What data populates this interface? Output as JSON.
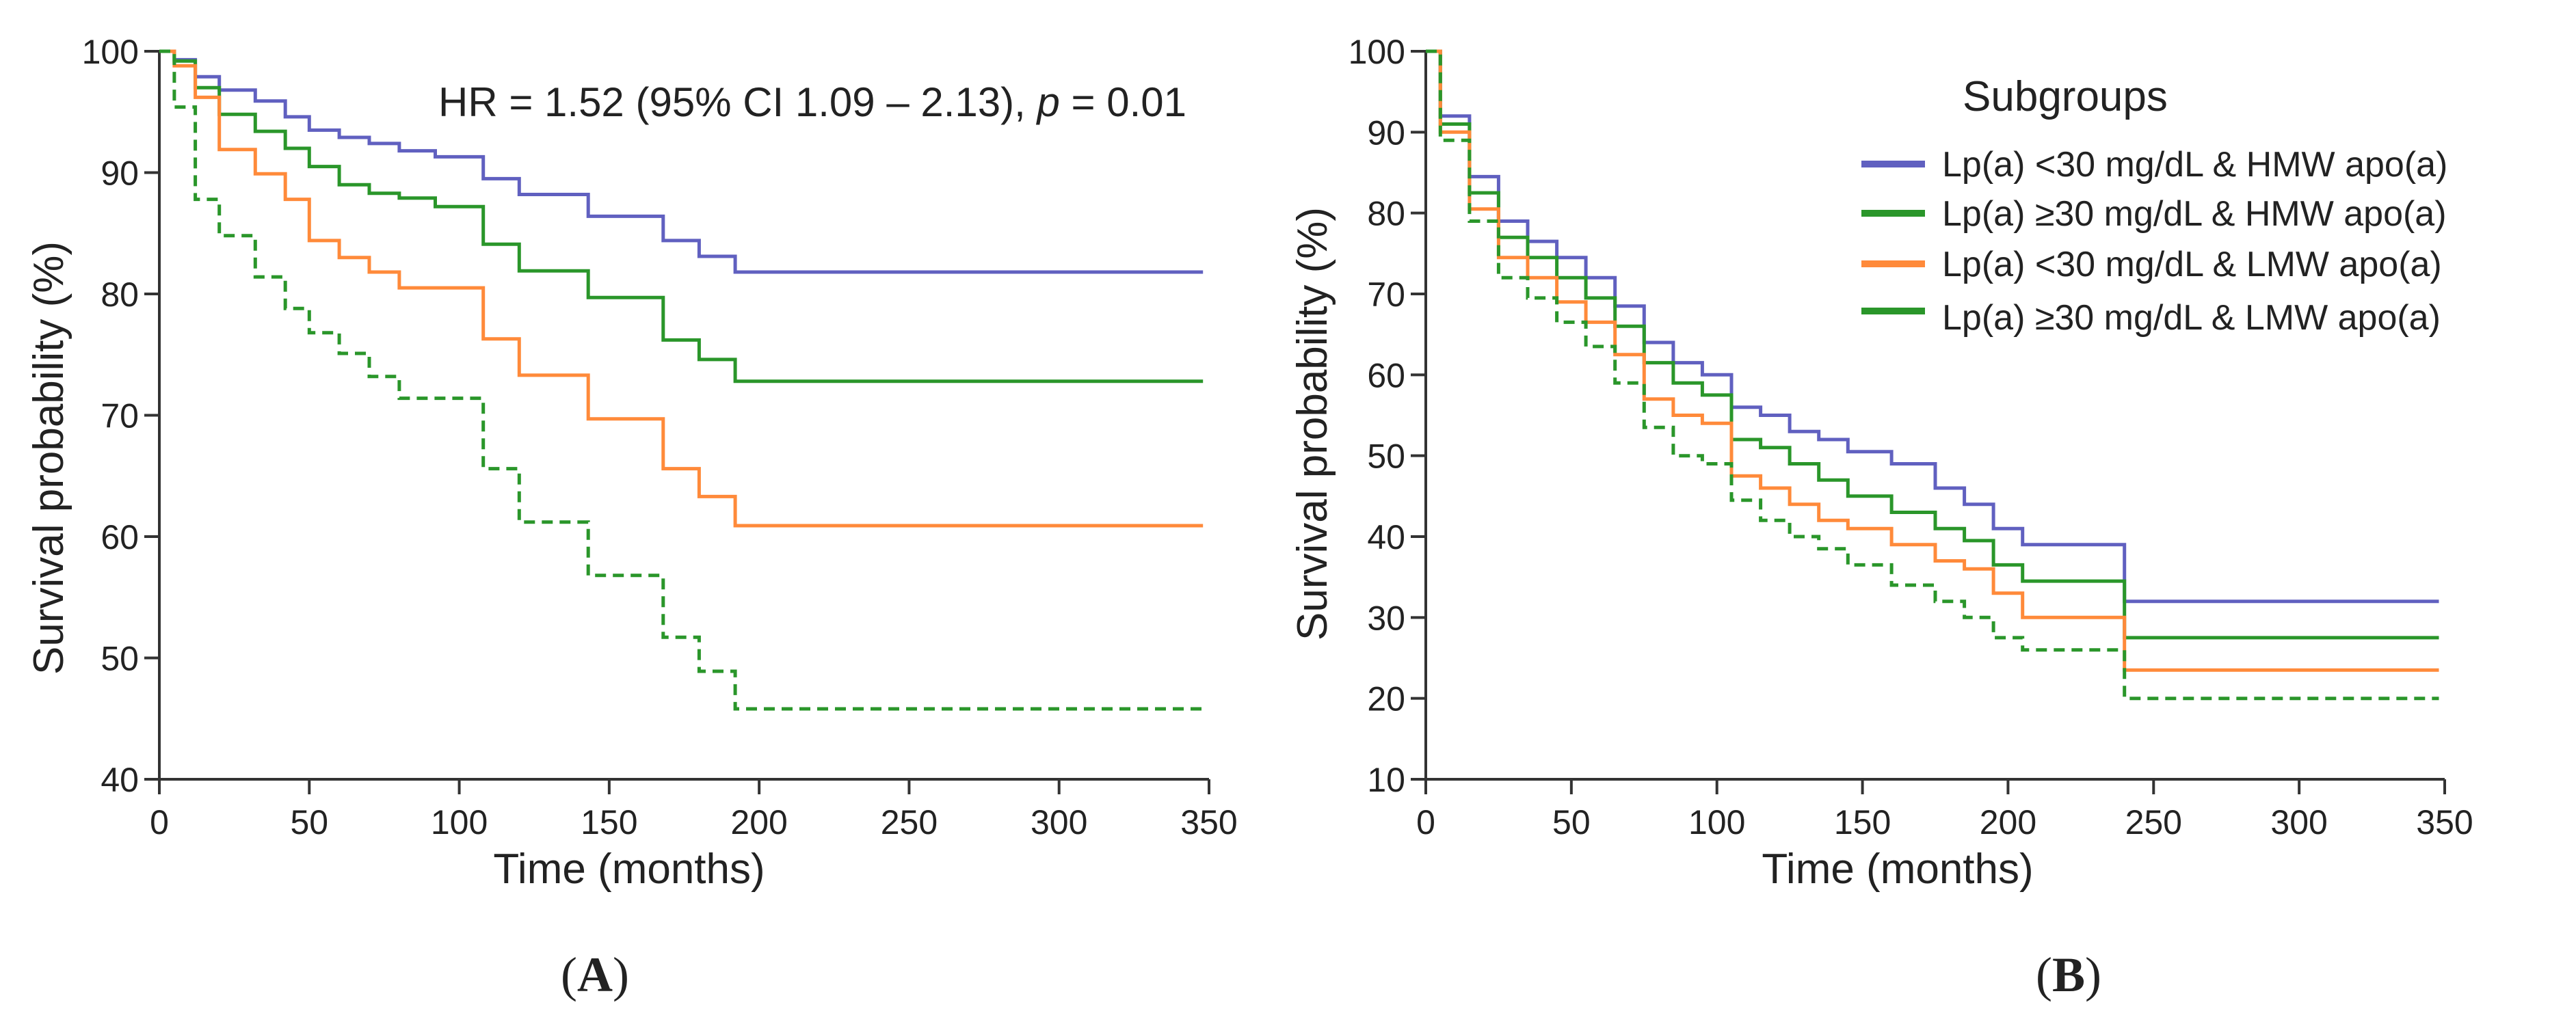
{
  "colors": {
    "blue": "#6060c0",
    "green": "#2a962a",
    "orange": "#ff8a3a",
    "axis": "#333333"
  },
  "chart_data": [
    {
      "id": "A",
      "type": "line",
      "step": true,
      "panel_label": "A",
      "title": "",
      "xlabel": "Time (months)",
      "ylabel": "Survival probability (%)",
      "xlim": [
        0,
        350
      ],
      "ylim": [
        40,
        100
      ],
      "xticks": [
        0,
        50,
        100,
        150,
        200,
        250,
        300,
        350
      ],
      "yticks": [
        40,
        50,
        60,
        70,
        80,
        90,
        100
      ],
      "annotation": {
        "prefix": "HR = 1.52 (95% CI 1.09 – 2.13), ",
        "p_label": "p",
        "suffix": " = 0.01"
      },
      "series": [
        {
          "name": "Lp(a) <30 mg/dL & HMW apo(a)",
          "color": "blue",
          "dashed": false,
          "x": [
            0,
            5,
            12,
            20,
            32,
            42,
            50,
            60,
            70,
            80,
            92,
            108,
            120,
            143,
            168,
            180,
            192,
            348
          ],
          "y": [
            100,
            99.3,
            97.9,
            96.8,
            95.9,
            94.6,
            93.5,
            92.9,
            92.4,
            91.8,
            91.3,
            89.5,
            88.2,
            86.4,
            84.4,
            83.1,
            81.8,
            81.8
          ]
        },
        {
          "name": "Lp(a) ≥30 mg/dL & HMW apo(a)",
          "color": "green",
          "dashed": false,
          "x": [
            0,
            5,
            12,
            20,
            32,
            42,
            50,
            60,
            70,
            80,
            92,
            108,
            120,
            143,
            168,
            180,
            192,
            348
          ],
          "y": [
            100,
            99.2,
            97.0,
            94.8,
            93.4,
            92.0,
            90.5,
            89.0,
            88.3,
            87.9,
            87.2,
            84.1,
            81.9,
            79.7,
            76.2,
            74.6,
            72.8,
            72.8
          ]
        },
        {
          "name": "Lp(a) <30 mg/dL & LMW apo(a)",
          "color": "orange",
          "dashed": false,
          "x": [
            0,
            5,
            12,
            20,
            32,
            42,
            50,
            60,
            70,
            80,
            92,
            108,
            120,
            143,
            168,
            180,
            192,
            348
          ],
          "y": [
            100,
            98.8,
            96.2,
            91.9,
            89.9,
            87.8,
            84.4,
            83.0,
            81.8,
            80.5,
            80.5,
            76.3,
            73.3,
            69.7,
            65.6,
            63.3,
            60.9,
            60.9
          ]
        },
        {
          "name": "Lp(a) ≥30 mg/dL & LMW apo(a)",
          "color": "green",
          "dashed": true,
          "x": [
            0,
            5,
            12,
            20,
            32,
            42,
            50,
            60,
            70,
            80,
            92,
            108,
            120,
            143,
            168,
            180,
            192,
            348
          ],
          "y": [
            100,
            95.4,
            87.8,
            84.8,
            81.4,
            78.8,
            76.8,
            75.1,
            73.2,
            71.4,
            71.4,
            65.6,
            61.2,
            56.8,
            51.7,
            48.9,
            45.8,
            45.8
          ]
        }
      ]
    },
    {
      "id": "B",
      "type": "line",
      "step": true,
      "panel_label": "B",
      "title": "",
      "xlabel": "Time (months)",
      "ylabel": "Survival probability (%)",
      "xlim": [
        0,
        350
      ],
      "ylim": [
        10,
        100
      ],
      "xticks": [
        0,
        50,
        100,
        150,
        200,
        250,
        300,
        350
      ],
      "yticks": [
        10,
        20,
        30,
        40,
        50,
        60,
        70,
        80,
        90,
        100
      ],
      "legend": {
        "title": "Subgroups",
        "position": "top-right"
      },
      "series": [
        {
          "name": "Lp(a) <30 mg/dL & HMW apo(a)",
          "color": "blue",
          "dashed": false,
          "x": [
            0,
            5,
            15,
            25,
            35,
            45,
            55,
            65,
            75,
            85,
            95,
            105,
            115,
            125,
            135,
            145,
            160,
            175,
            185,
            195,
            205,
            240,
            348
          ],
          "y": [
            100,
            92,
            84.5,
            79,
            76.5,
            74.5,
            72,
            68.5,
            64,
            61.5,
            60,
            56,
            55,
            53,
            52,
            50.5,
            49,
            46,
            44,
            41,
            39,
            32,
            32
          ]
        },
        {
          "name": "Lp(a) ≥30 mg/dL & HMW apo(a)",
          "color": "green",
          "dashed": false,
          "x": [
            0,
            5,
            15,
            25,
            35,
            45,
            55,
            65,
            75,
            85,
            95,
            105,
            115,
            125,
            135,
            145,
            160,
            175,
            185,
            195,
            205,
            240,
            348
          ],
          "y": [
            100,
            91,
            82.5,
            77,
            74.5,
            72,
            69.5,
            66,
            61.5,
            59,
            57.5,
            52,
            51,
            49,
            47,
            45,
            43,
            41,
            39.5,
            36.5,
            34.5,
            27.5,
            27.5
          ]
        },
        {
          "name": "Lp(a) <30 mg/dL & LMW apo(a)",
          "color": "orange",
          "dashed": false,
          "x": [
            0,
            5,
            15,
            25,
            35,
            45,
            55,
            65,
            75,
            85,
            95,
            105,
            115,
            125,
            135,
            145,
            160,
            175,
            185,
            195,
            205,
            240,
            348
          ],
          "y": [
            100,
            90,
            80.5,
            74.5,
            72,
            69,
            66.5,
            62.5,
            57,
            55,
            54,
            47.5,
            46,
            44,
            42,
            41,
            39,
            37,
            36,
            33,
            30,
            23.5,
            23.5
          ]
        },
        {
          "name": "Lp(a) ≥30 mg/dL & LMW apo(a)",
          "color": "green",
          "dashed": true,
          "x": [
            0,
            5,
            15,
            25,
            35,
            45,
            55,
            65,
            75,
            85,
            95,
            105,
            115,
            125,
            135,
            145,
            160,
            175,
            185,
            195,
            205,
            240,
            348
          ],
          "y": [
            100,
            89,
            79,
            72,
            69.5,
            66.5,
            63.5,
            59,
            53.5,
            50,
            49,
            44.5,
            42,
            40,
            38.5,
            36.5,
            34,
            32,
            30,
            27.5,
            26,
            20,
            20
          ]
        }
      ]
    }
  ]
}
